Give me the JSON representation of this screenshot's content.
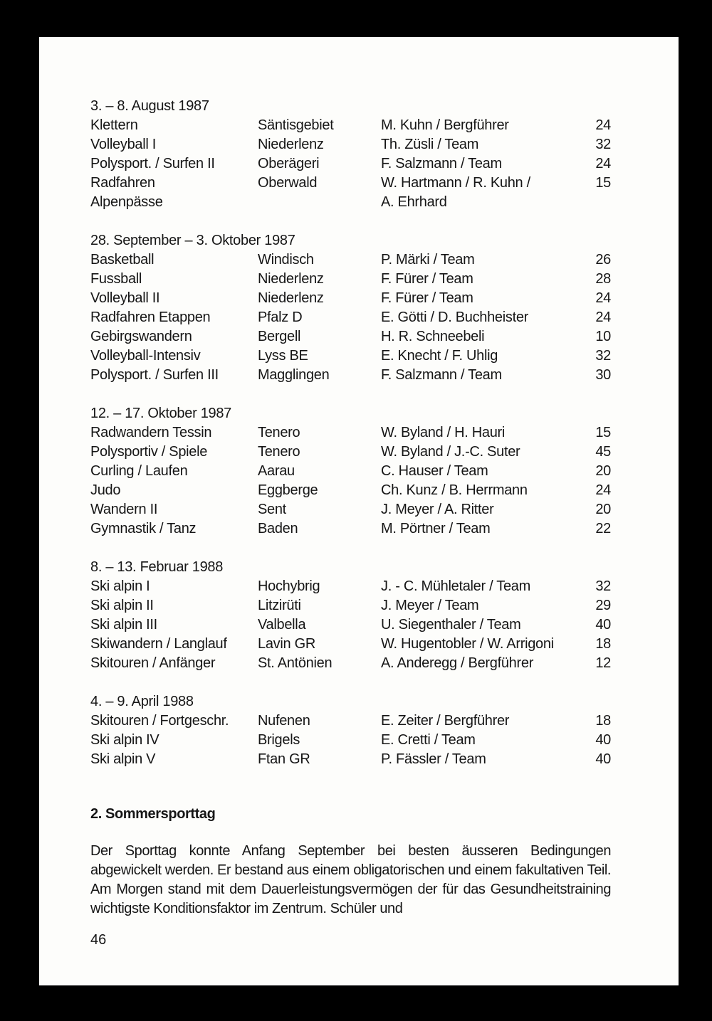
{
  "sections": [
    {
      "date": "3. – 8. August 1987",
      "rows": [
        [
          "Klettern",
          "Säntisgebiet",
          "M. Kuhn / Bergführer",
          "24"
        ],
        [
          "Volleyball I",
          "Niederlenz",
          "Th. Züsli / Team",
          "32"
        ],
        [
          "Polysport. / Surfen II",
          "Oberägeri",
          "F. Salzmann / Team",
          "24"
        ],
        [
          "Radfahren",
          "Oberwald",
          "W. Hartmann / R. Kuhn /",
          "15"
        ],
        [
          "Alpenpässe",
          "",
          "A. Ehrhard",
          ""
        ]
      ]
    },
    {
      "date": "28. September – 3. Oktober 1987",
      "rows": [
        [
          "Basketball",
          "Windisch",
          "P. Märki / Team",
          "26"
        ],
        [
          "Fussball",
          "Niederlenz",
          "F. Fürer / Team",
          "28"
        ],
        [
          "Volleyball II",
          "Niederlenz",
          "F. Fürer / Team",
          "24"
        ],
        [
          "Radfahren Etappen",
          "Pfalz D",
          "E. Götti / D. Buchheister",
          "24"
        ],
        [
          "Gebirgswandern",
          "Bergell",
          "H. R. Schneebeli",
          "10"
        ],
        [
          "Volleyball-Intensiv",
          "Lyss BE",
          "E. Knecht / F. Uhlig",
          "32"
        ],
        [
          "Polysport. / Surfen III",
          "Magglingen",
          "F. Salzmann / Team",
          "30"
        ]
      ]
    },
    {
      "date": "12. – 17. Oktober 1987",
      "rows": [
        [
          "Radwandern Tessin",
          "Tenero",
          "W. Byland / H. Hauri",
          "15"
        ],
        [
          "Polysportiv / Spiele",
          "Tenero",
          "W. Byland / J.-C. Suter",
          "45"
        ],
        [
          "Curling / Laufen",
          "Aarau",
          "C. Hauser / Team",
          "20"
        ],
        [
          "Judo",
          "Eggberge",
          "Ch. Kunz / B. Herrmann",
          "24"
        ],
        [
          "Wandern II",
          "Sent",
          "J. Meyer / A. Ritter",
          "20"
        ],
        [
          "Gymnastik / Tanz",
          "Baden",
          "M. Pörtner / Team",
          "22"
        ]
      ]
    },
    {
      "date": "8.  – 13. Februar 1988",
      "rows": [
        [
          "Ski alpin I",
          "Hochybrig",
          "J. - C. Mühletaler / Team",
          "32"
        ],
        [
          "Ski alpin II",
          "Litzirüti",
          "J. Meyer / Team",
          "29"
        ],
        [
          "Ski alpin III",
          "Valbella",
          "U. Siegenthaler / Team",
          "40"
        ],
        [
          "Skiwandern / Langlauf",
          "Lavin GR",
          "W. Hugentobler / W. Arrigoni",
          "18"
        ],
        [
          "Skitouren / Anfänger",
          "St. Antönien",
          "A. Anderegg / Bergführer",
          "12"
        ]
      ]
    },
    {
      "date": "4.  – 9. April 1988",
      "rows": [
        [
          "Skitouren / Fortgeschr.",
          "Nufenen",
          "E. Zeiter / Bergführer",
          "18"
        ],
        [
          "Ski alpin IV",
          "Brigels",
          "E. Cretti / Team",
          "40"
        ],
        [
          "Ski alpin V",
          "Ftan GR",
          "P. Fässler / Team",
          "40"
        ]
      ]
    }
  ],
  "heading": "2. Sommersporttag",
  "paragraph": "Der Sporttag konnte Anfang September bei besten äusseren Bedingungen abgewickelt werden. Er bestand aus einem obligatorischen und einem fakultativen Teil. Am Morgen stand mit dem Dauerleistungsvermögen der für das Gesundheitstraining wichtigste Konditionsfaktor im Zentrum. Schüler und",
  "page_number": "46"
}
